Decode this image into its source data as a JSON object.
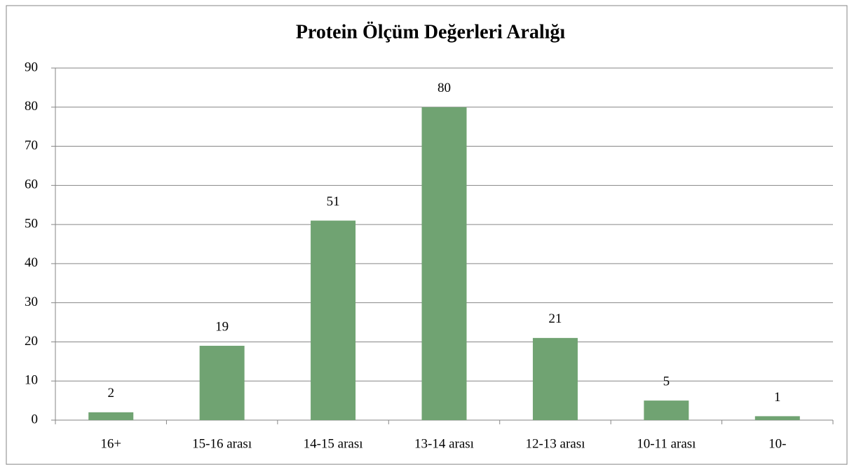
{
  "chart_data": {
    "type": "bar",
    "title": "Protein Ölçüm Değerleri Aralığı",
    "categories": [
      "16+",
      "15-16 arası",
      "14-15 arası",
      "13-14 arası",
      "12-13 arası",
      "10-11 arası",
      "10-"
    ],
    "values": [
      2,
      19,
      51,
      80,
      21,
      5,
      1
    ],
    "color": "#70a372",
    "ylim": [
      0,
      90
    ],
    "yticks": [
      0,
      10,
      20,
      30,
      40,
      50,
      60,
      70,
      80,
      90
    ],
    "grid": true
  }
}
